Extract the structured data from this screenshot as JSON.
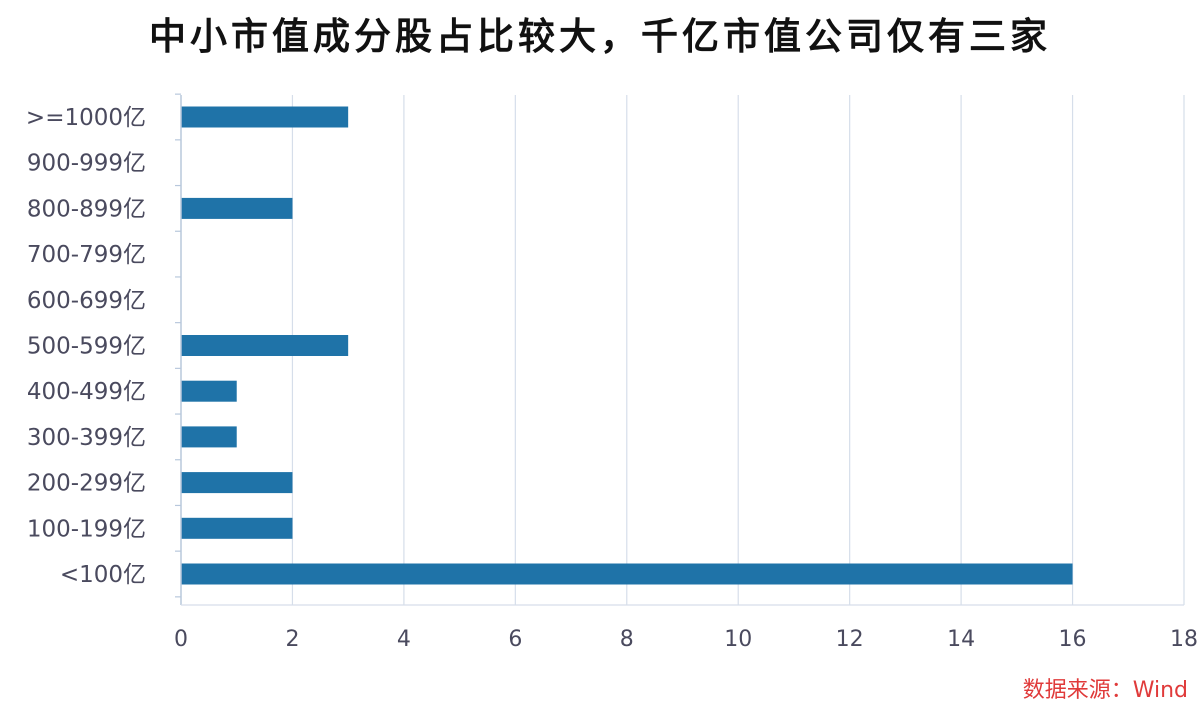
{
  "chart_data": {
    "type": "bar",
    "orientation": "horizontal",
    "title": "中小市值成分股占比较大，千亿市值公司仅有三家",
    "categories": [
      ">=1000亿",
      "900-999亿",
      "800-899亿",
      "700-799亿",
      "600-699亿",
      "500-599亿",
      "400-499亿",
      "300-399亿",
      "200-299亿",
      "100-199亿",
      "<100亿"
    ],
    "values": [
      3,
      0,
      2,
      0,
      0,
      3,
      1,
      1,
      2,
      2,
      16
    ],
    "xlim": [
      0,
      18
    ],
    "xticks": [
      "0",
      "2",
      "4",
      "6",
      "8",
      "10",
      "12",
      "14",
      "16",
      "18"
    ],
    "grid": "vertical",
    "bar_color": "#1f73a8",
    "grid_color": "#d6deea",
    "axis_color": "#b8c8dc",
    "label_color": "#4a4a5e"
  },
  "source": "数据来源：Wind"
}
